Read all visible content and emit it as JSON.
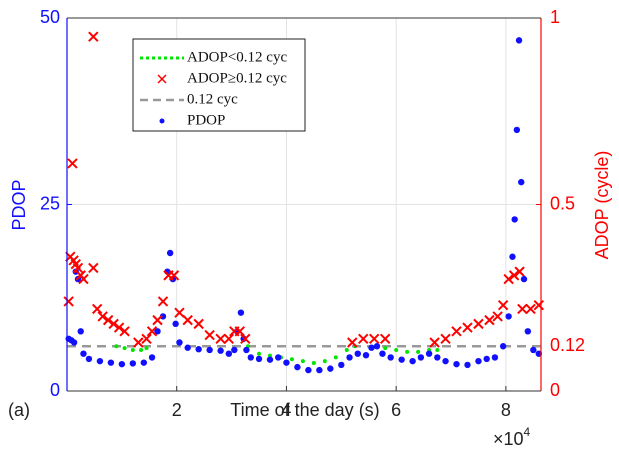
{
  "chart_data": {
    "type": "scatter",
    "xlabel": "Time of the day (s)",
    "ylabel": "PDOP",
    "y2label": "ADOP (cycle)",
    "panel_label": "(a)",
    "x_multiplier": "×10",
    "x_multiplier_exponent": "4",
    "xlim": [
      0,
      86400
    ],
    "xticks": [
      {
        "value": 20000,
        "label": "2"
      },
      {
        "value": 40000,
        "label": "4"
      },
      {
        "value": 60000,
        "label": "6"
      },
      {
        "value": 80000,
        "label": "8"
      }
    ],
    "ylim": [
      0,
      50
    ],
    "yticks": [
      0,
      25,
      50
    ],
    "y2lim": [
      0,
      1
    ],
    "y2ticks": [
      0,
      0.12,
      0.5,
      1
    ],
    "grid": true,
    "series": [
      {
        "name": "ADOP<0.12 cyc",
        "color": "#00e600",
        "marker": "dotted",
        "axis": "y2",
        "x": [
          9000,
          10500,
          12000,
          13500,
          14500,
          33000,
          35000,
          37000,
          39000,
          41000,
          43000,
          45000,
          47000,
          49000,
          51000,
          52500,
          56500,
          58000,
          60000,
          62000,
          64000,
          66000,
          67500
        ],
        "values": [
          0.12,
          0.115,
          0.11,
          0.11,
          0.115,
          0.12,
          0.1,
          0.095,
          0.09,
          0.085,
          0.08,
          0.075,
          0.08,
          0.09,
          0.11,
          0.12,
          0.12,
          0.115,
          0.11,
          0.105,
          0.105,
          0.11,
          0.11
        ]
      },
      {
        "name": "ADOP≥0.12 cyc",
        "color": "#ff0000",
        "marker": "x",
        "axis": "y2",
        "x": [
          300,
          600,
          1000,
          1200,
          1600,
          2000,
          2500,
          3000,
          4800,
          4800,
          5500,
          6500,
          7500,
          8500,
          9500,
          10500,
          13000,
          14500,
          15500,
          16500,
          17500,
          18500,
          19500,
          20500,
          22000,
          24000,
          26000,
          28000,
          29500,
          30500,
          31500,
          32500,
          52000,
          54000,
          56000,
          58000,
          67000,
          69000,
          71000,
          73000,
          75000,
          77000,
          78500,
          79500,
          80500,
          81500,
          82500,
          83000,
          84500,
          86000
        ],
        "values": [
          0.24,
          0.36,
          0.61,
          0.35,
          0.34,
          0.33,
          0.31,
          0.3,
          0.95,
          0.33,
          0.22,
          0.2,
          0.19,
          0.18,
          0.17,
          0.16,
          0.13,
          0.14,
          0.16,
          0.19,
          0.24,
          0.31,
          0.31,
          0.21,
          0.19,
          0.18,
          0.15,
          0.14,
          0.14,
          0.16,
          0.16,
          0.14,
          0.13,
          0.14,
          0.14,
          0.14,
          0.13,
          0.14,
          0.16,
          0.17,
          0.18,
          0.19,
          0.2,
          0.23,
          0.3,
          0.31,
          0.32,
          0.22,
          0.22,
          0.23
        ]
      },
      {
        "name": "0.12 cyc",
        "color": "#999999",
        "marker": "dashed",
        "axis": "y2",
        "x": [
          0,
          86400
        ],
        "values": [
          0.12,
          0.12
        ]
      },
      {
        "name": "PDOP",
        "color": "#1010ff",
        "marker": "dot",
        "x": [
          300,
          800,
          1300,
          1600,
          2000,
          2500,
          3000,
          4000,
          6000,
          8000,
          10000,
          12000,
          14000,
          15500,
          16500,
          17500,
          18300,
          18800,
          19300,
          19800,
          20500,
          22000,
          24000,
          26000,
          28000,
          29500,
          30500,
          31000,
          31700,
          32200,
          32700,
          33500,
          35000,
          37000,
          38500,
          40000,
          42000,
          44000,
          46000,
          48000,
          50000,
          51500,
          53000,
          54500,
          55500,
          56500,
          57500,
          59000,
          61000,
          63000,
          64500,
          66000,
          67500,
          69000,
          71000,
          73000,
          75000,
          76500,
          78000,
          79500,
          80500,
          81200,
          81600,
          82000,
          82400,
          82800,
          83300,
          84000,
          85000,
          86000
        ],
        "values": [
          7,
          6.8,
          6.5,
          16,
          15,
          8,
          5,
          4.3,
          4,
          3.8,
          3.6,
          3.7,
          3.8,
          4.5,
          8,
          10,
          16,
          18.5,
          15,
          9,
          6.5,
          5.8,
          5.6,
          5.5,
          5.4,
          5,
          5.5,
          8,
          10.5,
          7,
          5.5,
          4.5,
          4.3,
          4.2,
          4.5,
          3.8,
          3.2,
          2.8,
          2.8,
          3,
          3.5,
          4.5,
          5,
          4.8,
          5.8,
          6,
          5,
          4.5,
          4.2,
          4,
          4.5,
          5,
          4.5,
          4,
          3.6,
          3.5,
          4,
          4.3,
          4.5,
          6,
          10,
          18,
          23,
          35,
          47,
          28,
          15,
          8,
          5.5,
          5
        ]
      }
    ]
  }
}
